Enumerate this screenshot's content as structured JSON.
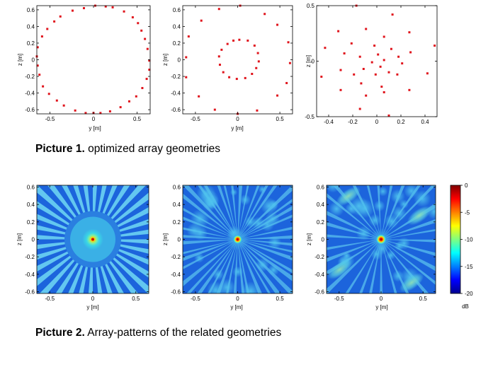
{
  "captions": {
    "picture1_bold": "Picture 1.",
    "picture1_text": " optimized array geometries",
    "picture2_bold": "Picture 2.",
    "picture2_text": " Array-patterns of the related geometries"
  },
  "colors": {
    "marker": "#e0141c",
    "axis": "#000000",
    "heatmap_low": "#00008f",
    "heatmap_mid": "#3fa8e6",
    "heatmap_high": "#800000"
  },
  "chart_data": [
    {
      "type": "scatter",
      "xlabel": "y [m]",
      "ylabel": "z [m]",
      "xlim": [
        -0.65,
        0.65
      ],
      "ylim": [
        -0.65,
        0.65
      ],
      "xticks": [
        "-0.5",
        "0",
        "0.5"
      ],
      "yticks": [
        "0.6",
        "0.4",
        "0.2",
        "0",
        "-0.2",
        "-0.4",
        "-0.6"
      ],
      "xtick_values": [
        -0.5,
        0,
        0.5
      ],
      "ytick_values": [
        0.6,
        0.4,
        0.2,
        0,
        -0.2,
        -0.4,
        -0.6
      ],
      "points": [
        [
          0.64,
          -0.01
        ],
        [
          0.62,
          0.13
        ],
        [
          0.59,
          0.25
        ],
        [
          0.55,
          0.35
        ],
        [
          0.51,
          0.44
        ],
        [
          0.45,
          0.51
        ],
        [
          0.35,
          0.58
        ],
        [
          0.22,
          0.63
        ],
        [
          0.14,
          0.64
        ],
        [
          0.02,
          0.65
        ],
        [
          -0.11,
          0.62
        ],
        [
          -0.24,
          0.59
        ],
        [
          -0.38,
          0.52
        ],
        [
          -0.45,
          0.46
        ],
        [
          -0.53,
          0.37
        ],
        [
          -0.59,
          0.28
        ],
        [
          -0.64,
          0.15
        ],
        [
          -0.65,
          0.04
        ],
        [
          -0.64,
          -0.07
        ],
        [
          -0.62,
          -0.18
        ],
        [
          -0.58,
          -0.32
        ],
        [
          -0.51,
          -0.41
        ],
        [
          -0.42,
          -0.49
        ],
        [
          -0.34,
          -0.55
        ],
        [
          -0.21,
          -0.61
        ],
        [
          -0.09,
          -0.64
        ],
        [
          0.0,
          -0.64
        ],
        [
          0.08,
          -0.64
        ],
        [
          0.19,
          -0.62
        ],
        [
          0.31,
          -0.57
        ],
        [
          0.41,
          -0.5
        ],
        [
          0.49,
          -0.44
        ],
        [
          0.56,
          -0.34
        ],
        [
          0.61,
          -0.23
        ],
        [
          0.64,
          -0.12
        ]
      ]
    },
    {
      "type": "scatter",
      "xlabel": "y [m]",
      "ylabel": "z [m]",
      "xlim": [
        -0.65,
        0.65
      ],
      "ylim": [
        -0.65,
        0.65
      ],
      "xticks": [
        "-0.5",
        "0",
        "0.5"
      ],
      "yticks": [
        "0.6",
        "0.4",
        "0.2",
        "0",
        "-0.2",
        "-0.4",
        "-0.6"
      ],
      "xtick_values": [
        -0.5,
        0,
        0.5
      ],
      "ytick_values": [
        0.6,
        0.4,
        0.2,
        0,
        -0.2,
        -0.4,
        -0.6
      ],
      "points": [
        [
          0.03,
          0.65
        ],
        [
          -0.22,
          0.61
        ],
        [
          0.32,
          0.55
        ],
        [
          -0.43,
          0.47
        ],
        [
          0.47,
          0.42
        ],
        [
          -0.58,
          0.28
        ],
        [
          0.6,
          0.21
        ],
        [
          -0.61,
          0.03
        ],
        [
          0.62,
          -0.04
        ],
        [
          -0.61,
          -0.21
        ],
        [
          0.58,
          -0.28
        ],
        [
          -0.46,
          -0.44
        ],
        [
          0.47,
          -0.43
        ],
        [
          -0.27,
          -0.6
        ],
        [
          0.23,
          -0.61
        ],
        [
          0.0,
          -0.65
        ],
        [
          0.02,
          0.24
        ],
        [
          0.12,
          0.23
        ],
        [
          0.2,
          0.17
        ],
        [
          0.24,
          0.08
        ],
        [
          0.25,
          -0.02
        ],
        [
          0.22,
          -0.1
        ],
        [
          0.17,
          -0.17
        ],
        [
          0.09,
          -0.22
        ],
        [
          -0.01,
          -0.23
        ],
        [
          -0.1,
          -0.21
        ],
        [
          -0.17,
          -0.15
        ],
        [
          -0.21,
          -0.06
        ],
        [
          -0.22,
          0.04
        ],
        [
          -0.19,
          0.12
        ],
        [
          -0.12,
          0.19
        ],
        [
          -0.05,
          0.23
        ]
      ]
    },
    {
      "type": "scatter",
      "xlabel": "",
      "ylabel": "z [m]",
      "xlim": [
        -0.5,
        0.5
      ],
      "ylim": [
        -0.5,
        0.5
      ],
      "xticks": [
        "-0.4",
        "-0.2",
        "0",
        "0.2",
        "0.4"
      ],
      "yticks": [
        "0.5",
        "0",
        "-0.5"
      ],
      "xtick_values": [
        -0.4,
        -0.2,
        0,
        0.2,
        0.4
      ],
      "ytick_values": [
        0.5,
        0,
        -0.5
      ],
      "points": [
        [
          -0.17,
          0.5
        ],
        [
          0.13,
          0.42
        ],
        [
          -0.32,
          0.27
        ],
        [
          -0.09,
          0.29
        ],
        [
          0.27,
          0.26
        ],
        [
          0.06,
          0.22
        ],
        [
          -0.43,
          0.12
        ],
        [
          -0.21,
          0.16
        ],
        [
          0.48,
          0.14
        ],
        [
          -0.02,
          0.14
        ],
        [
          0.12,
          0.11
        ],
        [
          0.28,
          0.08
        ],
        [
          -0.27,
          0.07
        ],
        [
          0.01,
          0.06
        ],
        [
          0.18,
          0.04
        ],
        [
          -0.14,
          0.04
        ],
        [
          0.06,
          0.01
        ],
        [
          -0.04,
          -0.01
        ],
        [
          0.21,
          -0.02
        ],
        [
          -0.11,
          -0.07
        ],
        [
          0.03,
          -0.05
        ],
        [
          -0.3,
          -0.08
        ],
        [
          0.1,
          -0.1
        ],
        [
          -0.19,
          -0.12
        ],
        [
          -0.01,
          -0.12
        ],
        [
          0.17,
          -0.12
        ],
        [
          0.42,
          -0.11
        ],
        [
          -0.46,
          -0.14
        ],
        [
          -0.13,
          -0.2
        ],
        [
          0.04,
          -0.23
        ],
        [
          -0.3,
          -0.26
        ],
        [
          0.27,
          -0.26
        ],
        [
          -0.09,
          -0.31
        ],
        [
          0.06,
          -0.28
        ],
        [
          -0.14,
          -0.43
        ],
        [
          0.1,
          -0.49
        ]
      ]
    },
    {
      "type": "heatmap",
      "xlabel": "y [m]",
      "ylabel": "z [m]",
      "xlim": [
        -0.65,
        0.65
      ],
      "ylim": [
        -0.62,
        0.62
      ],
      "xticks": [
        "-0.5",
        "0",
        "0.5"
      ],
      "yticks": [
        "0.6",
        "0.4",
        "0.2",
        "0",
        "-0.2",
        "-0.4",
        "-0.6"
      ],
      "xtick_values": [
        -0.5,
        0,
        0.5
      ],
      "ytick_values": [
        0.6,
        0.4,
        0.2,
        0,
        -0.2,
        -0.4,
        -0.6
      ],
      "pattern": "ring-array: 35 strong radial spokes, smooth ring-shaped main lobe of radius ~0.1 m around a bright peak at (0,0)",
      "peak_db": 0,
      "floor_db": -20
    },
    {
      "type": "heatmap",
      "xlabel": "y [m]",
      "ylabel": "z [m]",
      "xlim": [
        -0.65,
        0.65
      ],
      "ylim": [
        -0.62,
        0.62
      ],
      "xticks": [
        "-0.5",
        "0",
        "0.5"
      ],
      "yticks": [
        "0.6",
        "0.4",
        "0.2",
        "0",
        "-0.2",
        "-0.4",
        "-0.6"
      ],
      "xtick_values": [
        -0.5,
        0,
        0.5
      ],
      "ytick_values": [
        0.6,
        0.4,
        0.2,
        0,
        -0.2,
        -0.4,
        -0.6
      ],
      "pattern": "double-ring array: fine radial sidelobe texture, narrow red main lobe at (0,0)",
      "peak_db": 0,
      "floor_db": -20
    },
    {
      "type": "heatmap",
      "xlabel": "y [m]",
      "ylabel": "z [m]",
      "xlim": [
        -0.65,
        0.65
      ],
      "ylim": [
        -0.62,
        0.62
      ],
      "xticks": [
        "-0.5",
        "0",
        "0.5"
      ],
      "yticks": [
        "0.6",
        "0.4",
        "0.2",
        "0",
        "-0.2",
        "-0.4",
        "-0.6"
      ],
      "xtick_values": [
        -0.5,
        0,
        0.5
      ],
      "ytick_values": [
        0.6,
        0.4,
        0.2,
        0,
        -0.2,
        -0.4,
        -0.6
      ],
      "pattern": "random array: irregular sidelobe blobs (cyan/green in corners), sharp red main lobe at (0,0)",
      "peak_db": 0,
      "floor_db": -20
    }
  ],
  "colorbar": {
    "unit": "dB",
    "range": [
      -20,
      0
    ],
    "ticks": [
      "0",
      "-5",
      "-10",
      "-15",
      "-20"
    ],
    "tick_values": [
      0,
      -5,
      -10,
      -15,
      -20
    ],
    "colormap": "jet"
  }
}
